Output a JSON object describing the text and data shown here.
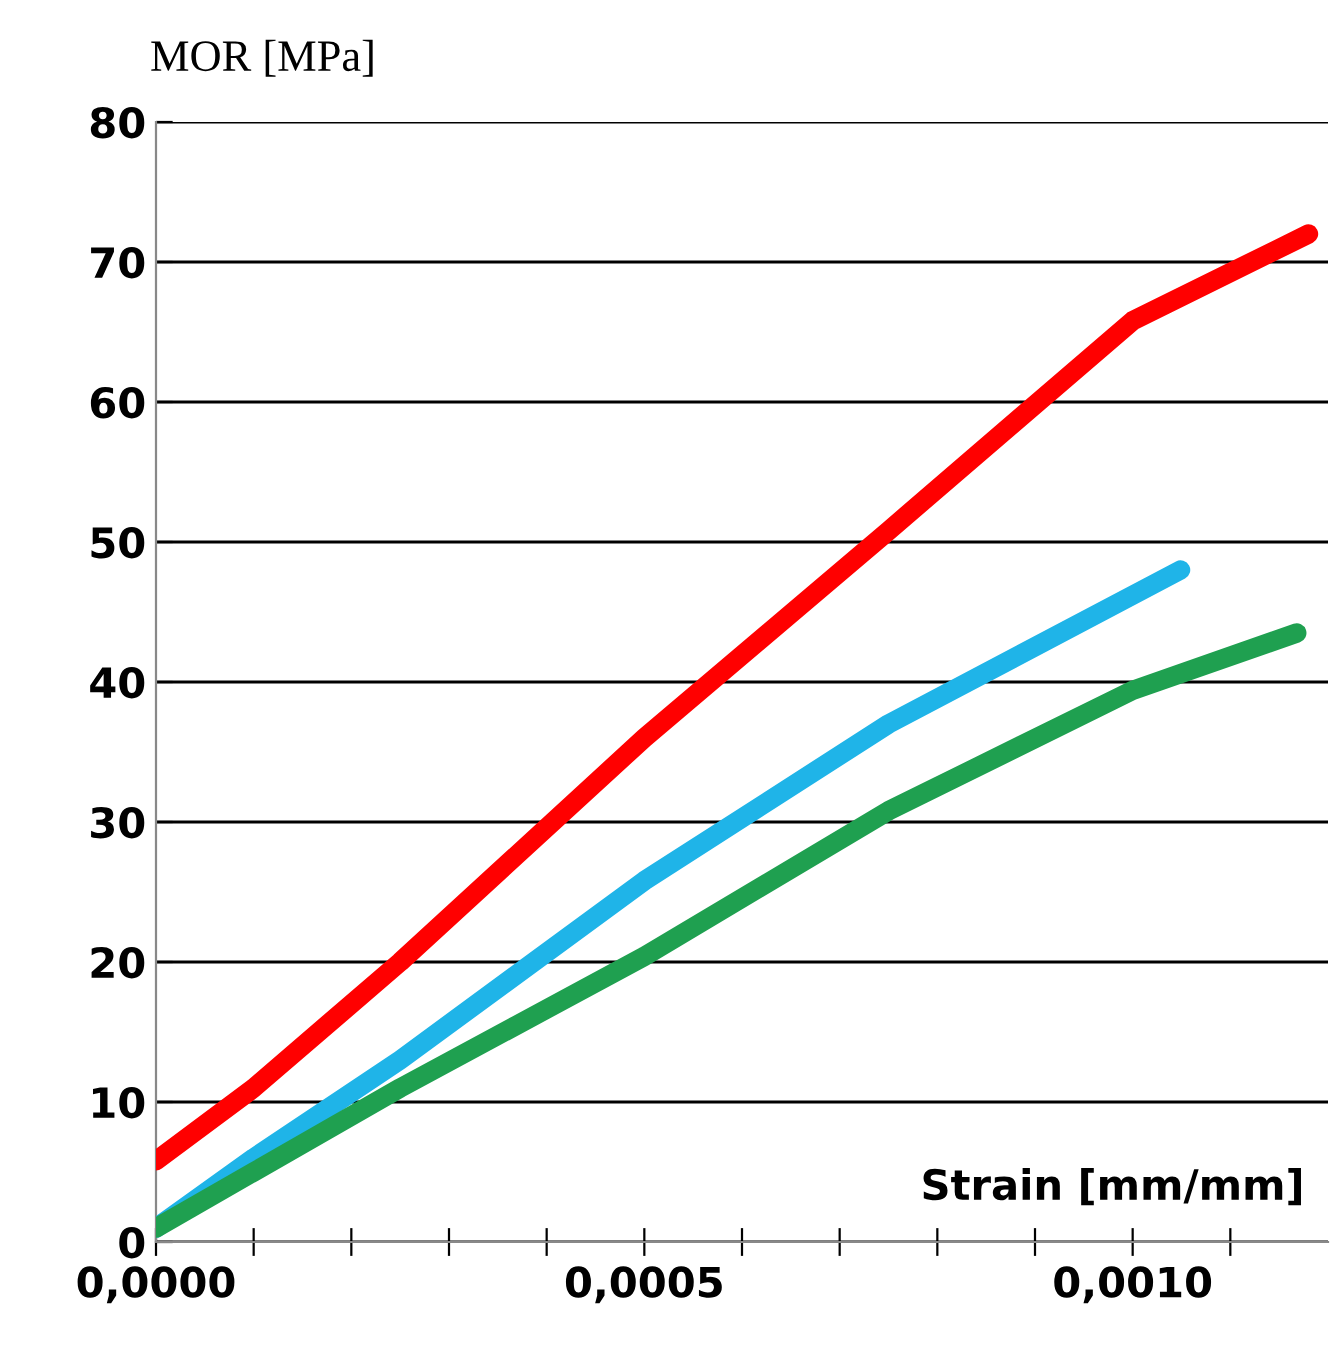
{
  "chart_data": {
    "type": "line",
    "ylabel": "MOR [MPa]",
    "xlabel": "Strain [mm/mm]",
    "xlim": [
      0,
      0.0012
    ],
    "ylim": [
      0,
      80
    ],
    "xticks": [
      {
        "value": 0,
        "label": "0,0000"
      },
      {
        "value": 0.0001,
        "label": null
      },
      {
        "value": 0.0002,
        "label": null
      },
      {
        "value": 0.0003,
        "label": null
      },
      {
        "value": 0.0004,
        "label": null
      },
      {
        "value": 0.0005,
        "label": "0,0005"
      },
      {
        "value": 0.0006,
        "label": null
      },
      {
        "value": 0.0007,
        "label": null
      },
      {
        "value": 0.0008,
        "label": null
      },
      {
        "value": 0.0009,
        "label": null
      },
      {
        "value": 0.001,
        "label": "0,0010"
      },
      {
        "value": 0.0011,
        "label": null
      }
    ],
    "yticks": [
      0,
      10,
      20,
      30,
      40,
      50,
      60,
      70,
      80
    ],
    "grid": "y",
    "legend": false,
    "marker": "none",
    "line_style": "solid",
    "series": [
      {
        "color": "#ff0000",
        "x": [
          0,
          0.0001,
          0.00025,
          0.0005,
          0.00075,
          0.001,
          0.00118
        ],
        "values": [
          5.8,
          11,
          20,
          36,
          50.8,
          65.8,
          72
        ]
      },
      {
        "color": "#1fb4e8",
        "x": [
          0,
          0.0001,
          0.00025,
          0.0005,
          0.00075,
          0.001049
        ],
        "values": [
          1,
          6,
          13,
          25.8,
          37,
          48
        ]
      },
      {
        "color": "#1fa050",
        "x": [
          0,
          0.0001,
          0.00025,
          0.0005,
          0.00075,
          0.001,
          0.001168
        ],
        "values": [
          1,
          5,
          11,
          20.4,
          30.8,
          39.4,
          43.5
        ]
      }
    ]
  }
}
